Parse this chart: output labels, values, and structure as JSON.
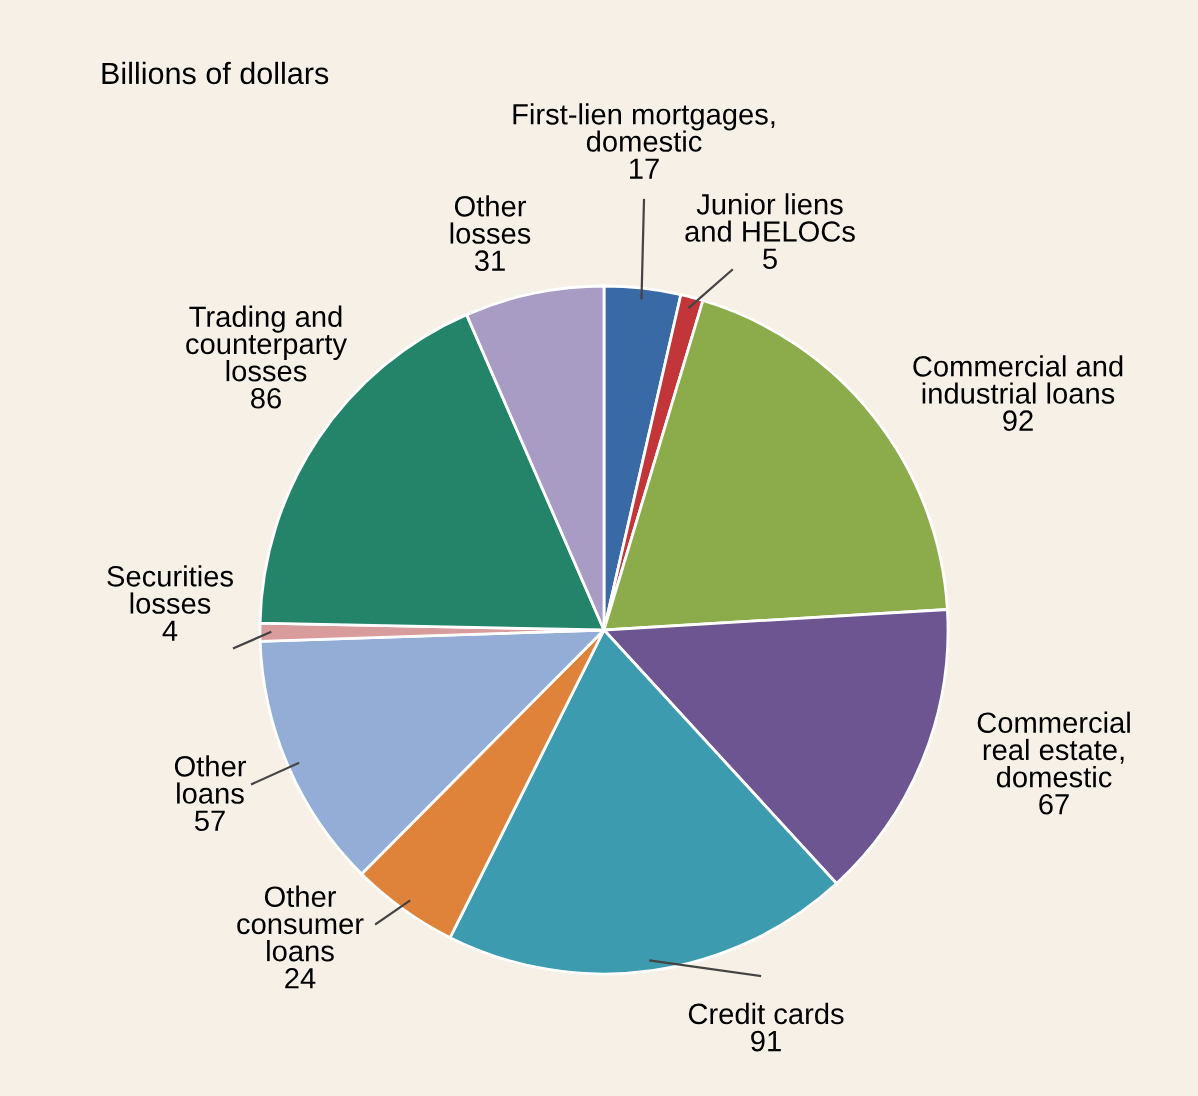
{
  "chart_data": {
    "type": "pie",
    "title": "Billions of dollars",
    "categories": [
      "First-lien mortgages,\ndomestic",
      "Junior liens\nand HELOCs",
      "Commercial and\nindustrial loans",
      "Commercial\nreal estate,\ndomestic",
      "Credit cards",
      "Other\nconsumer\nloans",
      "Other\nloans",
      "Securities\nlosses",
      "Trading and\ncounterparty\nlosses",
      "Other\nlosses"
    ],
    "values": [
      17,
      5,
      92,
      67,
      91,
      24,
      57,
      4,
      86,
      31
    ],
    "colors": [
      "#3a6aa6",
      "#c2363a",
      "#8cab4b",
      "#6c5590",
      "#3d9bb0",
      "#df833a",
      "#93add6",
      "#d99c9c",
      "#24846a",
      "#a99cc4"
    ],
    "data_labels": true
  }
}
